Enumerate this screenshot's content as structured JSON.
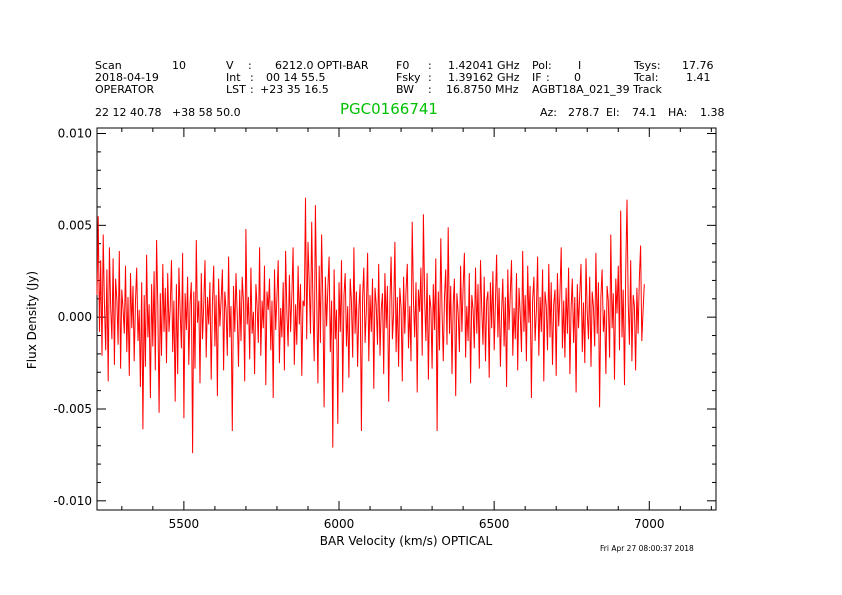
{
  "header": {
    "row1": [
      "Scan",
      "10",
      "V",
      ":",
      "6212.0 OPTI-BAR",
      "F0",
      ":",
      "1.42041 GHz",
      "Pol:",
      "I",
      "Tsys:",
      "17.76"
    ],
    "row2": [
      "2018-04-19",
      "Int",
      ":",
      "00 14 55.5",
      "Fsky",
      ":",
      "1.39162 GHz",
      "IF",
      ":",
      "0",
      "Tcal:",
      "1.41"
    ],
    "row3": [
      "OPERATOR",
      "LST",
      ":",
      "+23 35 16.5",
      "BW",
      ":",
      "16.8750 MHz",
      "AGBT18A_021_39 Track"
    ],
    "coords": "22 12 40.78   +38 58 50.0",
    "source": "PGC0166741",
    "azel": [
      "Az:",
      "278.7",
      "El:",
      "74.1",
      "HA:",
      "1.38"
    ],
    "timestamp": "Fri Apr 27 08:00:37 2018"
  },
  "chart_data": {
    "type": "line",
    "xlabel": "BAR Velocity (km/s) OPTICAL",
    "ylabel": "Flux Density (Jy)",
    "xlim": [
      5220,
      7215
    ],
    "ylim": [
      -0.0105,
      0.0103
    ],
    "xticks": [
      5500,
      6000,
      6500,
      7000
    ],
    "xtick_labels": [
      "5500",
      "6000",
      "6500",
      "7000"
    ],
    "yticks": [
      -0.01,
      -0.005,
      0.0,
      0.005,
      0.01
    ],
    "ytick_labels": [
      "-0.010",
      "-0.005",
      "0.000",
      "0.005",
      "0.010"
    ],
    "series_color": "#ff0000",
    "series": [
      {
        "x_start": 5220,
        "x_step": 4,
        "values": [
          0.0012,
          0.0055,
          -0.0008,
          0.0031,
          -0.0021,
          0.0045,
          0.0008,
          -0.0018,
          0.0026,
          -0.0035,
          0.0038,
          0.0005,
          -0.0012,
          0.0032,
          -0.0026,
          0.0021,
          0.0009,
          -0.0015,
          0.0036,
          -0.0028,
          0.0015,
          0.0004,
          -0.0009,
          0.0028,
          -0.0019,
          0.0011,
          -0.0032,
          0.0024,
          -0.0006,
          0.0017,
          -0.0024,
          0.0009,
          0.0027,
          -0.0013,
          0.0004,
          -0.0038,
          0.0019,
          -0.0061,
          0.0012,
          -0.0027,
          0.0034,
          -0.0011,
          0.0007,
          -0.0044,
          0.0018,
          -0.0016,
          0.0025,
          -0.0029,
          0.0042,
          0.0006,
          -0.0052,
          0.0013,
          -0.0021,
          0.0029,
          -0.0008,
          0.0016,
          -0.0025,
          0.0024,
          -0.0008,
          0.0005,
          0.0031,
          -0.0019,
          0.0009,
          -0.0046,
          0.0018,
          -0.0031,
          0.0027,
          0.0002,
          -0.0017,
          0.0035,
          -0.0055,
          0.0013,
          -0.0007,
          0.0022,
          -0.0026,
          0.0008,
          0.0019,
          -0.0074,
          0.0014,
          -0.0028,
          0.0042,
          -0.0003,
          0.0009,
          -0.0036,
          0.0024,
          -0.0012,
          0.0006,
          0.0031,
          -0.0022,
          0.0011,
          -0.0004,
          0.0019,
          -0.0034,
          0.0007,
          0.0028,
          -0.0016,
          0.0012,
          -0.0043,
          0.0021,
          -0.0005,
          0.0009,
          0.0026,
          -0.0029,
          0.0014,
          0.0004,
          -0.0021,
          0.0033,
          -0.0011,
          0.0006,
          -0.0062,
          0.0017,
          -0.0008,
          0.0024,
          0.0002,
          -0.0027,
          0.0015,
          -0.0013,
          0.0022,
          0.0008,
          -0.0035,
          0.0048,
          -0.0004,
          0.0011,
          -0.0023,
          0.0027,
          -0.0009,
          0.0003,
          -0.0031,
          0.0018,
          0.0006,
          -0.0014,
          0.0038,
          -0.0021,
          0.0009,
          -0.0006,
          0.0028,
          -0.0037,
          0.0014,
          0.0004,
          0.0021,
          -0.0018,
          0.0009,
          -0.0044,
          0.0026,
          -0.0007,
          0.0012,
          0.0031,
          -0.0025,
          0.0005,
          -0.0011,
          0.0019,
          -0.0029,
          0.0036,
          0.0002,
          -0.0016,
          0.0023,
          -0.0008,
          0.0013,
          0.0038,
          -0.0026,
          0.0007,
          -0.0015,
          0.0028,
          -0.0004,
          0.0018,
          -0.0032,
          0.0009,
          0.0006,
          0.0065,
          -0.0012,
          0.0041,
          0.0019,
          -0.0009,
          0.0052,
          0.0004,
          -0.0024,
          0.0061,
          0.0011,
          -0.0036,
          0.0028,
          -0.0014,
          0.0045,
          0.0007,
          -0.0049,
          0.0022,
          -0.0005,
          0.0015,
          0.0033,
          -0.0019,
          0.0009,
          -0.0071,
          0.0026,
          -0.0012,
          0.0004,
          -0.0058,
          0.0019,
          -0.0008,
          0.0031,
          -0.0041,
          0.0012,
          0.0024,
          -0.0016,
          0.0006,
          -0.0033,
          0.0021,
          0.0009,
          -0.0022,
          0.0038,
          -0.0009,
          0.0014,
          -0.0027,
          0.0005,
          0.0018,
          -0.0062,
          0.0011,
          0.0027,
          -0.0014,
          0.0003,
          0.0035,
          -0.0024,
          0.0012,
          -0.0008,
          0.0021,
          -0.0039,
          0.0016,
          0.0007,
          -0.0015,
          0.0029,
          -0.0021,
          0.0004,
          0.0013,
          -0.0031,
          0.0024,
          -0.0006,
          0.0017,
          -0.0046,
          0.0008,
          0.0033,
          -0.0012,
          0.0002,
          0.0041,
          -0.0019,
          0.0011,
          -0.0027,
          0.0016,
          0.0005,
          -0.0035,
          0.0022,
          -0.0009,
          0.0014,
          0.0029,
          -0.0017,
          0.0006,
          -0.0024,
          0.0052,
          0.0008,
          -0.0011,
          0.0019,
          -0.0041,
          0.0015,
          0.0003,
          0.0027,
          -0.0021,
          0.0056,
          0.0009,
          -0.0013,
          0.0024,
          -0.0034,
          0.0012,
          0.0005,
          -0.0028,
          0.0018,
          -0.0007,
          0.0032,
          -0.0062,
          0.0014,
          -0.0018,
          0.0043,
          0.0004,
          -0.0024,
          0.0011,
          0.0026,
          -0.0015,
          0.0049,
          -0.0009,
          0.0017,
          -0.0031,
          0.0007,
          0.0021,
          -0.0043,
          0.0013,
          0.0002,
          -0.0019,
          0.0028,
          -0.0008,
          0.0016,
          0.0035,
          -0.0022,
          0.0006,
          -0.0013,
          0.0024,
          -0.0036,
          0.0012,
          0.0004,
          -0.0017,
          0.0027,
          -0.0009,
          0.0018,
          -0.0028,
          0.0031,
          0.0005,
          -0.0015,
          0.0022,
          -0.0024,
          0.0009,
          0.0014,
          -0.0033,
          0.0019,
          -0.0006,
          0.0025,
          -0.0018,
          0.0008,
          0.0034,
          -0.0011,
          0.0016,
          -0.0027,
          0.0003,
          0.0021,
          -0.0016,
          0.0011,
          -0.0038,
          0.0026,
          -0.0007,
          0.0013,
          0.0031,
          -0.0021,
          0.0005,
          -0.0012,
          0.0024,
          -0.0029,
          0.0016,
          0.0002,
          -0.0019,
          0.0036,
          -0.0008,
          0.0012,
          -0.0024,
          0.0028,
          -0.0003,
          0.0017,
          -0.0044,
          0.0009,
          0.0022,
          -0.0013,
          0.0004,
          0.0033,
          -0.0021,
          0.0011,
          -0.0008,
          0.0026,
          -0.0035,
          0.0014,
          0.0006,
          -0.0018,
          0.0029,
          -0.0011,
          0.0019,
          -0.0026,
          0.0007,
          0.0015,
          -0.0032,
          0.0024,
          -0.0005,
          0.0012,
          0.0038,
          -0.0017,
          0.0009,
          -0.0022,
          0.0016,
          -0.0009,
          0.0027,
          -0.0031,
          0.0005,
          0.0021,
          -0.0014,
          0.0011,
          -0.0041,
          0.0018,
          -0.0006,
          0.0013,
          0.0029,
          -0.0019,
          0.0008,
          -0.0025,
          0.0032,
          0.0003,
          -0.0012,
          0.0022,
          -0.0027,
          0.0014,
          0.0006,
          -0.0016,
          0.0035,
          -0.0009,
          0.0019,
          -0.0049,
          0.0011,
          0.0026,
          -0.0008,
          0.0004,
          -0.0031,
          0.0017,
          0.0009,
          -0.0022,
          0.0045,
          -0.0006,
          0.0013,
          -0.0034,
          0.0021,
          0.0002,
          0.0028,
          -0.0018,
          0.0058,
          -0.0011,
          0.0015,
          -0.0037,
          0.0024,
          0.0064,
          0.0008,
          -0.0015,
          0.0031,
          -0.0024,
          0.0012,
          0.0006,
          -0.0029,
          0.0016,
          -0.0009,
          0.0022,
          0.0039,
          -0.0013,
          0.0004,
          0.0018
        ]
      }
    ]
  }
}
